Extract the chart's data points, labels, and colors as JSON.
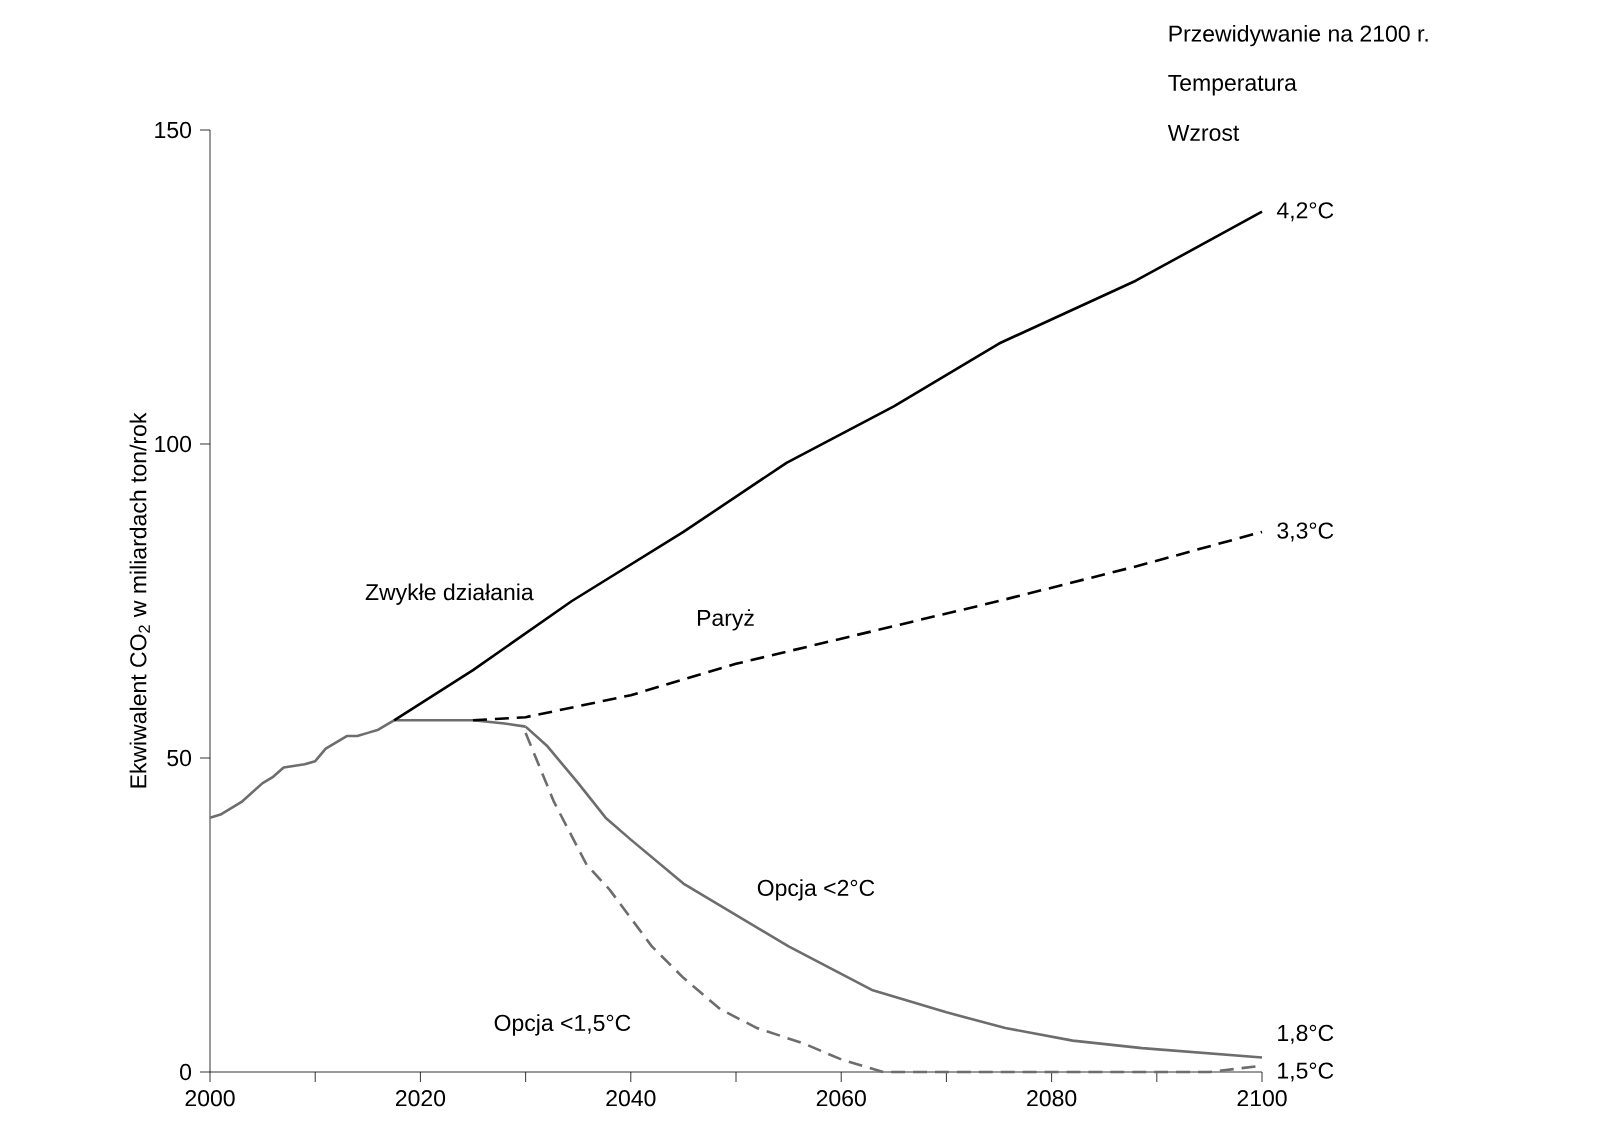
{
  "chart_data": {
    "type": "line",
    "ylabel": "Ekwiwalent CO$_{2}$ w miliardach ton/rok",
    "xlim": [
      2000,
      2100
    ],
    "ylim": [
      0,
      150
    ],
    "xticks": [
      2000,
      {
        "value": 2010,
        "label": null
      },
      2020,
      {
        "value": 2030,
        "label": null
      },
      2040,
      {
        "value": 2050,
        "label": null
      },
      2060,
      {
        "value": 2070,
        "label": null
      },
      2080,
      {
        "value": 2090,
        "label": null
      },
      2100
    ],
    "yticks": [
      0,
      50,
      100,
      150
    ],
    "grid": false,
    "legend": false,
    "marker": "none",
    "series": [
      {
        "color": "#6d6d6d",
        "line_style": "solid",
        "x": [
          2000,
          2001,
          2003,
          2005,
          2006,
          2007,
          2009,
          2010,
          2011,
          2012,
          2013,
          2014,
          2015,
          2016,
          2017,
          2017.5,
          2020,
          2025,
          2028,
          2030
        ],
        "values": [
          40.5,
          41,
          43,
          46,
          47,
          48.5,
          49,
          49.5,
          51.5,
          52.5,
          53.5,
          53.5,
          54,
          54.5,
          55.5,
          56,
          56,
          56,
          55.5,
          55
        ]
      },
      {
        "name": "Zwykłe działania",
        "color": "#000000",
        "line_style": "solid",
        "x": [
          2017.5,
          2025,
          2034.4,
          2045,
          2054.8,
          2065,
          2075,
          2088,
          2100
        ],
        "values": [
          56,
          64,
          75,
          86,
          97,
          106,
          116,
          126,
          137
        ]
      },
      {
        "name": "Paryż",
        "color": "#000000",
        "line_style": "dashed",
        "x": [
          2025,
          2030,
          2040,
          2050,
          2060,
          2075,
          2088,
          2100
        ],
        "values": [
          56,
          56.5,
          60,
          65,
          69,
          75,
          80.5,
          86
        ]
      },
      {
        "name": "Opcja <2°C",
        "color": "#6d6d6d",
        "line_style": "solid",
        "x": [
          2030,
          2032,
          2035,
          2037.6,
          2040,
          2045,
          2050,
          2055,
          2063,
          2070,
          2075.6,
          2082,
          2088.6,
          2100
        ],
        "values": [
          55,
          52,
          46,
          40.5,
          37,
          30,
          25,
          20,
          13,
          9.5,
          7,
          5,
          3.8,
          2.3
        ]
      },
      {
        "name": "Opcja <1,5°C",
        "color": "#6d6d6d",
        "line_style": "dashed",
        "x": [
          2030,
          2032.7,
          2035.8,
          2038,
          2042,
          2045,
          2048.5,
          2052,
          2056.5,
          2060,
          2064,
          2070,
          2076,
          2082,
          2088.6,
          2095,
          2100
        ],
        "values": [
          54,
          43,
          33,
          29,
          20,
          15,
          10,
          7,
          4.5,
          2,
          0,
          0,
          0,
          0,
          0,
          0,
          1
        ]
      }
    ],
    "annotations": [
      "Przewidywanie na 2100 r.",
      "Temperatura",
      "Wzrost",
      "4,2°C",
      "3,3°C",
      "1,8°C",
      "1,5°C"
    ]
  }
}
